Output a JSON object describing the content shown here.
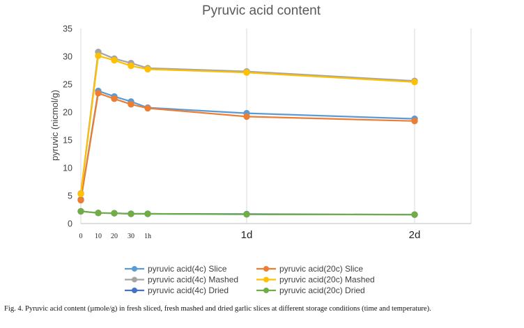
{
  "chart_data": {
    "type": "line",
    "title": "Pyruvic acid content",
    "xlabel": "",
    "ylabel": "pyruvic (nicmol/g)",
    "ylim": [
      0,
      35
    ],
    "yticks": [
      0,
      5,
      10,
      15,
      20,
      25,
      30,
      35
    ],
    "grid": "vertical",
    "x": [
      0,
      10,
      20,
      30,
      60,
      1440,
      2880
    ],
    "x_unit": "minutes",
    "xlim": [
      0,
      3300
    ],
    "x_tick_labels": [
      {
        "x": 0,
        "label": "0",
        "size": "small"
      },
      {
        "x": 10,
        "label": "10",
        "size": "small"
      },
      {
        "x": 20,
        "label": "20",
        "size": "small"
      },
      {
        "x": 30,
        "label": "30",
        "size": "small"
      },
      {
        "x": 60,
        "label": "1h",
        "size": "small"
      },
      {
        "x": 1440,
        "label": "1d",
        "size": "big"
      },
      {
        "x": 2880,
        "label": "2d",
        "size": "big"
      }
    ],
    "series": [
      {
        "name": "pyruvic acid(4c) Slice",
        "color": "#5B9BD5",
        "values": [
          4.3,
          23.8,
          22.8,
          21.9,
          20.8,
          19.8,
          18.8
        ]
      },
      {
        "name": "pyruvic acid(20c) Slice",
        "color": "#ED7D31",
        "values": [
          4.2,
          23.4,
          22.4,
          21.4,
          20.7,
          19.2,
          18.4
        ]
      },
      {
        "name": "pyruvic acid(4c) Mashed",
        "color": "#A5A5A5",
        "values": [
          5.4,
          30.8,
          29.6,
          28.8,
          27.9,
          27.3,
          25.6
        ]
      },
      {
        "name": "pyruvic acid(20c) Mashed",
        "color": "#FFC000",
        "values": [
          5.3,
          30.1,
          29.3,
          28.3,
          27.7,
          27.1,
          25.4
        ]
      },
      {
        "name": "pyruvic acid(4c) Dried",
        "color": "#4472C4",
        "values": [
          2.2,
          1.9,
          1.85,
          1.75,
          1.75,
          1.7,
          1.6
        ]
      },
      {
        "name": "pyruvic acid(20c) Dried",
        "color": "#70AD47",
        "values": [
          2.2,
          1.9,
          1.85,
          1.75,
          1.75,
          1.65,
          1.6
        ]
      }
    ],
    "legend_position": "bottom"
  },
  "caption": "Fig. 4.  Pyruvic acid content (µmole/g) in fresh sliced, fresh mashed and dried garlic slices at different storage conditions (time and temperature)."
}
